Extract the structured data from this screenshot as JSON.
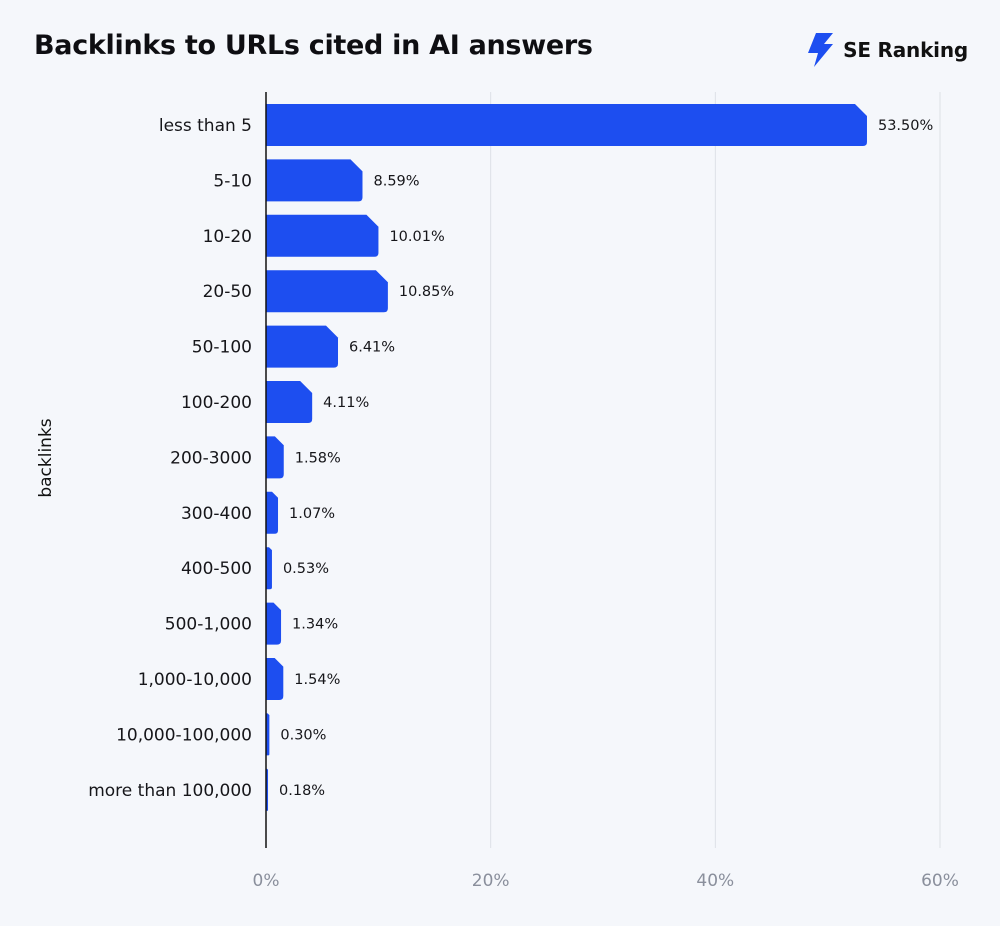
{
  "title": "Backlinks to URLs cited in AI answers",
  "brand": {
    "name": "SE Ranking",
    "logo_icon": "se-ranking-bolt-icon",
    "color": "#1d4ef0"
  },
  "chart_data": {
    "type": "bar",
    "orientation": "horizontal",
    "ylabel": "backlinks",
    "xlabel": "",
    "xlim": [
      0,
      60
    ],
    "x_ticks": [
      0,
      20,
      40,
      60
    ],
    "x_tick_labels": [
      "0%",
      "20%",
      "40%",
      "60%"
    ],
    "grid": "vertical gridlines",
    "bar_color": "#1d4ef0",
    "categories": [
      "less than 5",
      "5-10",
      "10-20",
      "20-50",
      "50-100",
      "100-200",
      "200-3000",
      "300-400",
      "400-500",
      "500-1,000",
      "1,000-10,000",
      "10,000-100,000",
      "more than 100,000"
    ],
    "values": [
      53.5,
      8.59,
      10.01,
      10.85,
      6.41,
      4.11,
      1.58,
      1.07,
      0.53,
      1.34,
      1.54,
      0.3,
      0.18
    ],
    "value_labels": [
      "53.50%",
      "8.59%",
      "10.01%",
      "10.85%",
      "6.41%",
      "4.11%",
      "1.58%",
      "1.07%",
      "0.53%",
      "1.34%",
      "1.54%",
      "0.30%",
      "0.18%"
    ]
  }
}
